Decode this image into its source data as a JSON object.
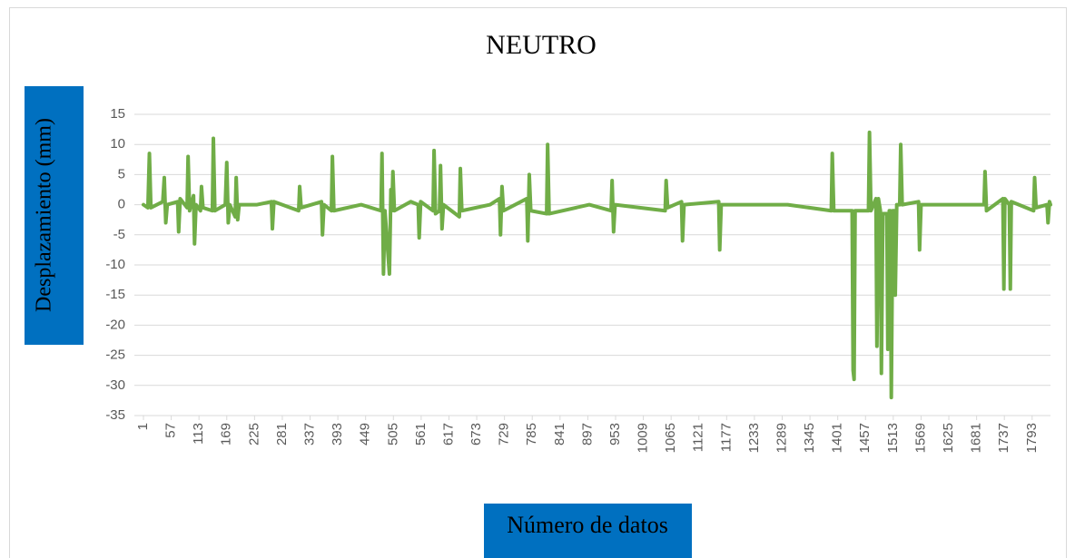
{
  "chart_data": {
    "type": "line",
    "title": "NEUTRO",
    "ylabel": "Desplazamiento (mm)",
    "xlabel": "Número de datos",
    "color": "#70ad47",
    "grid": true,
    "ylim": [
      -35,
      15
    ],
    "yticks": [
      -35,
      -30,
      -25,
      -20,
      -15,
      -10,
      -5,
      0,
      5,
      10,
      15
    ],
    "xlim": [
      1,
      1830
    ],
    "xticks": [
      1,
      57,
      113,
      169,
      225,
      281,
      337,
      393,
      449,
      505,
      561,
      617,
      673,
      729,
      785,
      841,
      897,
      953,
      1009,
      1065,
      1121,
      1177,
      1233,
      1289,
      1345,
      1401,
      1457,
      1513,
      1569,
      1625,
      1681,
      1737,
      1793
    ],
    "x": [
      1,
      10,
      13,
      16,
      40,
      43,
      46,
      49,
      70,
      72,
      75,
      89,
      91,
      94,
      102,
      104,
      107,
      116,
      118,
      121,
      140,
      142,
      145,
      166,
      169,
      172,
      175,
      186,
      188,
      191,
      194,
      230,
      259,
      261,
      264,
      314,
      316,
      319,
      360,
      362,
      365,
      380,
      382,
      385,
      440,
      480,
      482,
      485,
      488,
      497,
      500,
      502,
      504,
      507,
      540,
      555,
      557,
      560,
      585,
      587,
      590,
      598,
      600,
      603,
      606,
      638,
      640,
      643,
      700,
      719,
      721,
      724,
      727,
      774,
      776,
      779,
      782,
      814,
      816,
      819,
      900,
      944,
      946,
      949,
      952,
      1053,
      1055,
      1058,
      1086,
      1088,
      1091,
      1161,
      1163,
      1166,
      1300,
      1388,
      1390,
      1393,
      1430,
      1432,
      1434,
      1436,
      1463,
      1465,
      1468,
      1478,
      1480,
      1483,
      1487,
      1489,
      1492,
      1500,
      1502,
      1505,
      1507,
      1509,
      1512,
      1515,
      1517,
      1520,
      1526,
      1528,
      1531,
      1564,
      1566,
      1569,
      1650,
      1696,
      1698,
      1701,
      1734,
      1736,
      1738,
      1747,
      1749,
      1751,
      1796,
      1798,
      1801,
      1823,
      1825,
      1828,
      1830
    ],
    "values": [
      0,
      -0.5,
      8.5,
      -0.5,
      0.5,
      4.5,
      -3,
      0,
      0.5,
      -4.5,
      1,
      -0.5,
      8,
      -1,
      1.5,
      -6.5,
      0,
      -1,
      3,
      -0.5,
      -1,
      11,
      -1,
      0,
      7,
      -3,
      0,
      -2,
      4.5,
      -2.5,
      0,
      0,
      0.5,
      -4,
      0.5,
      -1,
      3,
      -0.5,
      0.5,
      -5,
      0,
      -1,
      8,
      -1,
      0,
      -1,
      8.5,
      -11.5,
      -1,
      -11.5,
      2.5,
      -1,
      5.5,
      -1,
      0.5,
      0,
      -5.5,
      0.5,
      -1,
      9,
      -1.5,
      -1,
      6.5,
      -4,
      0,
      -2,
      6,
      -1,
      0,
      1,
      -5,
      3,
      -1,
      1,
      -6,
      5,
      -1,
      -1.5,
      10,
      -1.5,
      0,
      -1,
      4,
      -4.5,
      0,
      -1,
      4,
      -0.5,
      0.5,
      -6,
      0,
      0.5,
      -7.5,
      0,
      0,
      -1,
      8.5,
      -1,
      -1,
      -27.5,
      -29,
      -1,
      -1,
      12,
      -1,
      1,
      -23.5,
      1,
      -1,
      -28,
      -1.5,
      -1.5,
      -24,
      -1,
      -1,
      -32,
      -1,
      -1,
      -15,
      0,
      0,
      10,
      0,
      0.5,
      -7.5,
      0,
      0,
      0,
      5.5,
      -1,
      1,
      -14,
      1,
      0,
      -14,
      0.5,
      -1,
      4.5,
      -0.5,
      0,
      -3,
      0.5,
      0
    ]
  }
}
